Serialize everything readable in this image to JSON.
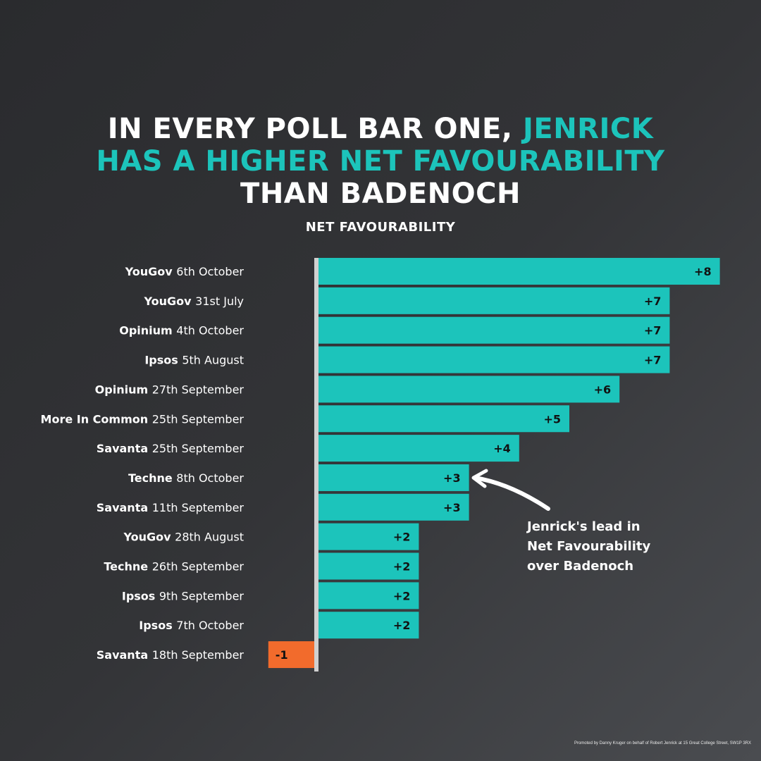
{
  "title": {
    "line1_white": "IN EVERY POLL BAR ONE,",
    "line1_teal": "JENRICK",
    "line2_teal": "HAS A HIGHER NET FAVOURABILITY",
    "line3_white": "THAN BADENOCH"
  },
  "colors": {
    "positive": "#1cc4bb",
    "negative": "#f26b2c",
    "axis": "#d0d0d0",
    "text": "#ffffff",
    "value_text": "#111111"
  },
  "annotation": {
    "lines": [
      "Jenrick's lead in",
      "Net Favourability",
      "over Badenoch"
    ]
  },
  "footer": "Promoted by Danny Kruger on behalf of Robert Jenrick at 15 Great College Street, SW1P 3RX",
  "chart_data": {
    "type": "bar",
    "orientation": "horizontal",
    "title": "NET FAVOURABILITY",
    "xlim": [
      -1,
      8
    ],
    "categories": [
      {
        "pollster": "YouGov",
        "date": "6th October"
      },
      {
        "pollster": "YouGov",
        "date": "31st July"
      },
      {
        "pollster": "Opinium",
        "date": "4th October"
      },
      {
        "pollster": "Ipsos",
        "date": "5th August"
      },
      {
        "pollster": "Opinium",
        "date": "27th September"
      },
      {
        "pollster": "More In Common",
        "date": "25th September"
      },
      {
        "pollster": "Savanta",
        "date": "25th September"
      },
      {
        "pollster": "Techne",
        "date": "8th October"
      },
      {
        "pollster": "Savanta",
        "date": "11th September"
      },
      {
        "pollster": "YouGov",
        "date": "28th August"
      },
      {
        "pollster": "Techne",
        "date": "26th September"
      },
      {
        "pollster": "Ipsos",
        "date": "9th September"
      },
      {
        "pollster": "Ipsos",
        "date": "7th October"
      },
      {
        "pollster": "Savanta",
        "date": "18th September"
      }
    ],
    "values": [
      8,
      7,
      7,
      7,
      6,
      5,
      4,
      3,
      3,
      2,
      2,
      2,
      2,
      -1
    ],
    "value_labels": [
      "+8",
      "+7",
      "+7",
      "+7",
      "+6",
      "+5",
      "+4",
      "+3",
      "+3",
      "+2",
      "+2",
      "+2",
      "+2",
      "-1"
    ]
  }
}
